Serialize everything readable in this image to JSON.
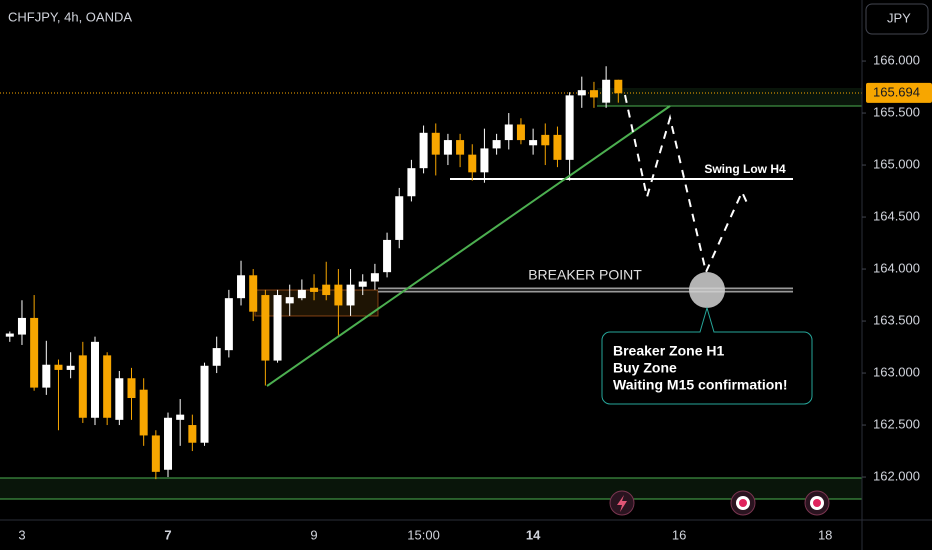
{
  "chart_data": {
    "type": "candlestick",
    "title": "CHFJPY, 4h, OANDA",
    "currency": "JPY",
    "categories": [
      null,
      "3",
      null,
      null,
      null,
      null,
      null,
      null,
      null,
      null,
      null,
      null,
      null,
      "7",
      null,
      null,
      null,
      null,
      null,
      null,
      null,
      null,
      null,
      null,
      null,
      "9",
      null,
      null,
      null,
      null,
      null,
      null,
      null,
      null,
      "15:00",
      null,
      null,
      null,
      null,
      null,
      null,
      null,
      null,
      "14",
      null,
      null,
      null,
      null,
      null,
      null,
      null,
      null,
      null,
      null,
      null,
      "16",
      null,
      null,
      null,
      null,
      null,
      null,
      null,
      null,
      null,
      null,
      null,
      "18",
      null,
      null,
      null
    ],
    "series": [
      {
        "up_color": "#ffffff",
        "down_color": "#f7a600",
        "open": [
          163.35,
          163.37,
          163.53,
          162.86,
          163.08,
          163.03,
          163.17,
          162.57,
          163.17,
          162.55,
          162.95,
          162.84,
          162.4,
          162.07,
          162.55,
          162.5,
          162.33,
          163.07,
          163.22,
          163.72,
          163.94,
          163.75,
          163.12,
          163.67,
          163.72,
          163.82,
          163.85,
          163.85,
          163.65,
          163.83,
          163.88,
          163.97,
          164.28,
          164.7,
          164.97,
          165.31,
          165.1,
          165.24,
          165.1,
          164.93,
          165.16,
          165.24,
          165.39,
          165.19,
          165.29,
          165.29,
          165.05,
          165.67,
          165.72,
          165.6,
          165.82,
          null,
          null,
          null,
          null,
          null,
          null,
          null,
          null,
          null,
          null,
          null,
          null,
          null,
          null,
          null,
          null,
          null,
          null,
          null,
          null
        ],
        "high": [
          163.4,
          163.7,
          163.75,
          163.31,
          163.13,
          163.2,
          163.3,
          163.35,
          163.2,
          163.02,
          163.05,
          162.95,
          162.45,
          162.62,
          162.75,
          162.6,
          163.1,
          163.35,
          163.8,
          164.08,
          164.0,
          163.8,
          163.8,
          163.85,
          163.9,
          163.95,
          164.07,
          164.0,
          164.0,
          163.95,
          164.05,
          164.35,
          164.78,
          165.05,
          165.38,
          165.4,
          165.3,
          165.3,
          165.2,
          165.35,
          165.3,
          165.5,
          165.45,
          165.35,
          165.4,
          165.37,
          165.7,
          165.85,
          165.8,
          165.95,
          165.82,
          null,
          null,
          null,
          null,
          null,
          null,
          null,
          null,
          null,
          null,
          null,
          null,
          null,
          null,
          null,
          null,
          null,
          null,
          null,
          null
        ],
        "low": [
          163.3,
          163.27,
          162.83,
          162.79,
          162.45,
          162.95,
          162.52,
          162.5,
          162.5,
          162.5,
          162.55,
          162.3,
          161.98,
          162.0,
          162.3,
          162.25,
          162.3,
          163.0,
          163.15,
          163.65,
          163.5,
          162.88,
          163.1,
          163.55,
          163.7,
          163.7,
          163.7,
          163.35,
          163.55,
          163.75,
          163.8,
          163.92,
          164.2,
          164.65,
          164.92,
          164.9,
          165.0,
          164.98,
          164.85,
          164.83,
          165.1,
          165.15,
          165.2,
          165.1,
          165.0,
          164.98,
          164.85,
          165.55,
          165.55,
          165.55,
          165.6,
          null,
          null,
          null,
          null,
          null,
          null,
          null,
          null,
          null,
          null,
          null,
          null,
          null,
          null,
          null,
          null,
          null,
          null,
          null,
          null
        ],
        "close": [
          163.38,
          163.53,
          162.86,
          163.08,
          163.03,
          163.07,
          162.57,
          163.3,
          162.57,
          162.95,
          162.76,
          162.4,
          162.05,
          162.57,
          162.6,
          162.33,
          163.07,
          163.24,
          163.72,
          163.94,
          163.59,
          163.12,
          163.75,
          163.73,
          163.8,
          163.78,
          163.75,
          163.65,
          163.85,
          163.88,
          163.96,
          164.28,
          164.7,
          164.97,
          165.31,
          165.1,
          165.24,
          165.1,
          164.93,
          165.16,
          165.24,
          165.39,
          165.24,
          165.24,
          165.19,
          165.05,
          165.67,
          165.72,
          165.65,
          165.82,
          165.69,
          null,
          null,
          null,
          null,
          null,
          null,
          null,
          null,
          null,
          null,
          null,
          null,
          null,
          null,
          null,
          null,
          null,
          null,
          null,
          null
        ]
      }
    ],
    "last_price": 165.694,
    "ylim": [
      161.587,
      166.587
    ],
    "yticks": [
      {
        "value": 162,
        "label": "162.000"
      },
      {
        "value": 162.5,
        "label": "162.500"
      },
      {
        "value": 163,
        "label": "163.000"
      },
      {
        "value": 163.5,
        "label": "163.500"
      },
      {
        "value": 164,
        "label": "164.000"
      },
      {
        "value": 164.5,
        "label": "164.500"
      },
      {
        "value": 165,
        "label": "165.000"
      },
      {
        "value": 165.5,
        "label": "165.500"
      },
      {
        "value": 166,
        "label": "166.000"
      }
    ],
    "annotations": {
      "swing_low": "Swing Low H4",
      "breaker": "BREAKER POINT",
      "callout": [
        "Breaker Zone H1",
        "Buy Zone",
        "Waiting M15 confirmation!"
      ]
    }
  }
}
